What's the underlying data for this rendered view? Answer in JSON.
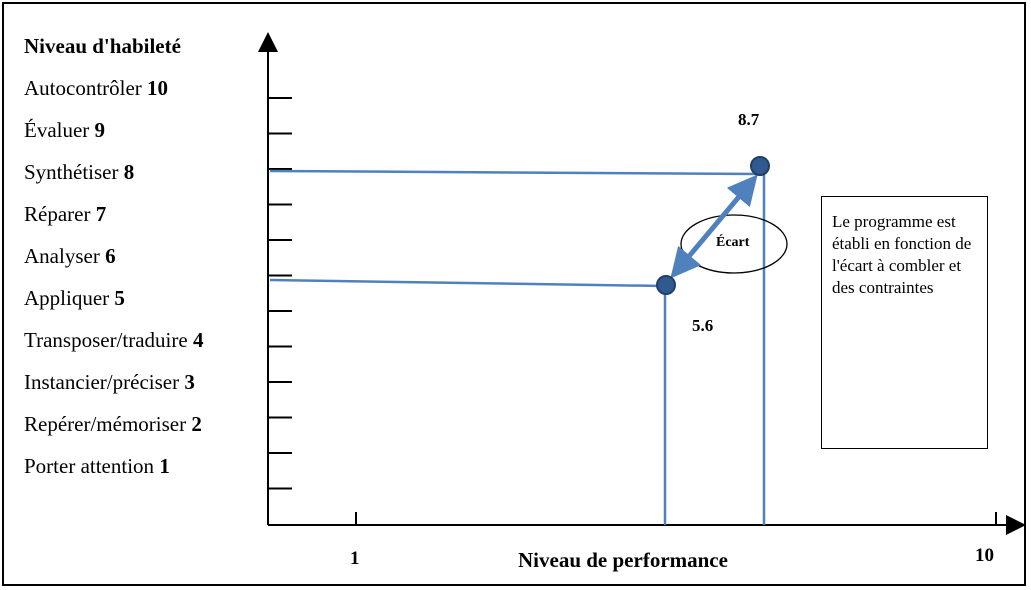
{
  "y_axis_title": "Niveau d'habileté",
  "levels": [
    {
      "name": "Autocontrôler",
      "num": "10"
    },
    {
      "name": "Évaluer",
      "num": "9"
    },
    {
      "name": "Synthétiser",
      "num": "8"
    },
    {
      "name": "Réparer",
      "num": "7"
    },
    {
      "name": "Analyser",
      "num": "6"
    },
    {
      "name": "Appliquer",
      "num": "5"
    },
    {
      "name": "Transposer/traduire",
      "num": "4"
    },
    {
      "name": "Instancier/préciser",
      "num": "3"
    },
    {
      "name": "Repérer/mémoriser",
      "num": "2"
    },
    {
      "name": "Porter attention",
      "num": "1"
    }
  ],
  "x_axis_title": "Niveau de performance",
  "x_ticks": {
    "low": "1",
    "high": "10"
  },
  "points": {
    "high": {
      "label": "8.7",
      "x": 8.7,
      "y": 8.7
    },
    "low": {
      "label": "5.6",
      "x": 5.6,
      "y": 5.6
    }
  },
  "gap_label": "Écart",
  "note_text": "Le programme est établi en fonction de l'écart à combler et des contraintes",
  "colors": {
    "line": "#4f81bd",
    "point_fill": "#2e5a8f",
    "point_edge": "#1f3f66",
    "axis": "#000000"
  }
}
